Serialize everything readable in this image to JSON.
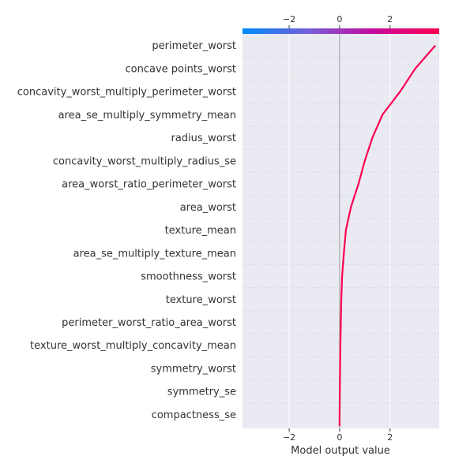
{
  "chart_data": {
    "type": "line",
    "subtype": "decision-plot",
    "xlabel": "Model output value",
    "xlim": [
      -3.85,
      3.95
    ],
    "xticks": [
      -2,
      0,
      2
    ],
    "xtick_labels": [
      "−2",
      "0",
      "2"
    ],
    "base_value": 0.0,
    "grid": true,
    "colormap": [
      "#008bfb",
      "#7b5cd6",
      "#c20ca0",
      "#ff0052"
    ],
    "line_color": "#ff0052",
    "features": [
      "perimeter_worst",
      "concave points_worst",
      "concavity_worst_multiply_perimeter_worst",
      "area_se_multiply_symmetry_mean",
      "radius_worst",
      "concavity_worst_multiply_radius_se",
      "area_worst_ratio_perimeter_worst",
      "area_worst",
      "texture_mean",
      "area_se_multiply_texture_mean",
      "smoothness_worst",
      "texture_worst",
      "perimeter_worst_ratio_area_worst",
      "texture_worst_multiply_concavity_mean",
      "symmetry_worst",
      "symmetry_se",
      "compactness_se"
    ],
    "path_x": [
      3.8,
      3.0,
      2.4,
      1.7,
      1.3,
      1.0,
      0.75,
      0.45,
      0.25,
      0.17,
      0.1,
      0.07,
      0.05,
      0.03,
      0.02,
      0.01,
      0.0,
      0.0
    ],
    "path_y": [
      0.5,
      1.5,
      2.5,
      3.5,
      4.5,
      5.5,
      6.5,
      7.5,
      8.5,
      9.5,
      10.5,
      11.5,
      12.5,
      13.5,
      14.5,
      15.5,
      16.5,
      17.0
    ]
  }
}
